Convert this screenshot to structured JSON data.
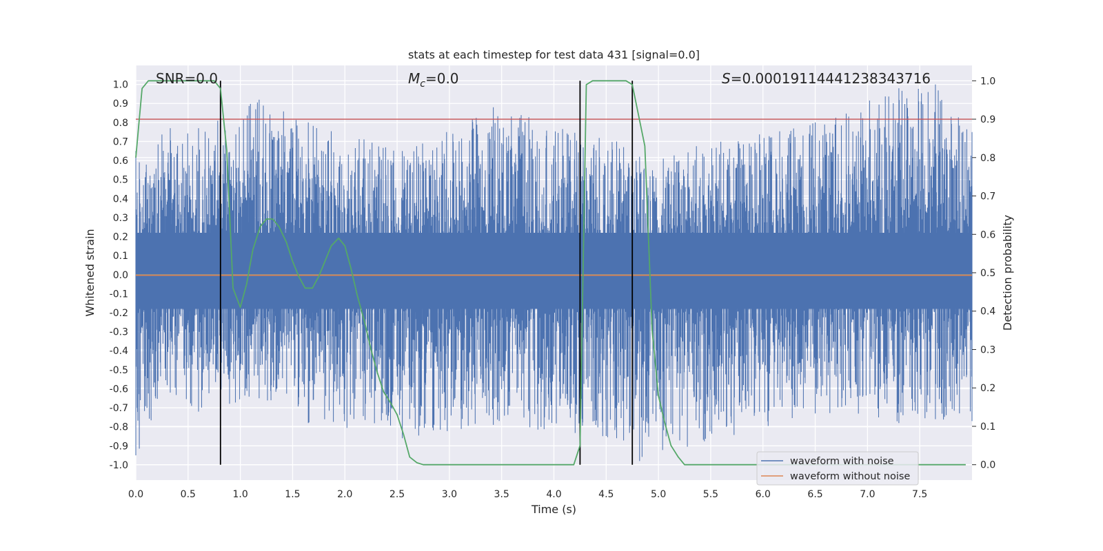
{
  "chart_data": {
    "type": "line",
    "title": "stats at each timestep for test data 431 [signal=0.0]",
    "xlabel": "Time (s)",
    "ylabel": "Whitened strain",
    "y2label": "Detection probability",
    "xlim": [
      0.0,
      8.0
    ],
    "ylim": [
      -1.08,
      1.1
    ],
    "y2lim": [
      -0.04,
      1.04
    ],
    "xticks": [
      "0.0",
      "0.5",
      "1.0",
      "1.5",
      "2.0",
      "2.5",
      "3.0",
      "3.5",
      "4.0",
      "4.5",
      "5.0",
      "5.5",
      "6.0",
      "6.5",
      "7.0",
      "7.5"
    ],
    "yticks": [
      "-1.0",
      "-0.9",
      "-0.8",
      "-0.7",
      "-0.6",
      "-0.5",
      "-0.4",
      "-0.3",
      "-0.2",
      "-0.1",
      "0.0",
      "0.1",
      "0.2",
      "0.3",
      "0.4",
      "0.5",
      "0.6",
      "0.7",
      "0.8",
      "0.9",
      "1.0"
    ],
    "y2ticks": [
      "0.0",
      "0.1",
      "0.2",
      "0.3",
      "0.4",
      "0.5",
      "0.6",
      "0.7",
      "0.8",
      "0.9",
      "1.0"
    ],
    "annotations": {
      "snr": "SNR=0.0",
      "mc_symbol": "M",
      "mc_subscript": "c",
      "mc_value": "=0.0",
      "s_symbol": "S",
      "s_value": "=0.00019114441238343716"
    },
    "series": [
      {
        "name": "waveform with noise",
        "axis": "left",
        "color": "#4c72b0",
        "noise_envelope": [
          {
            "x": 0.0,
            "max": 0.65,
            "min": -0.95
          },
          {
            "x": 0.33,
            "max": 0.77,
            "min": -0.62
          },
          {
            "x": 0.6,
            "max": 0.77,
            "min": -0.72
          },
          {
            "x": 1.18,
            "max": 0.92,
            "min": -0.65
          },
          {
            "x": 1.65,
            "max": 0.8,
            "min": -0.78
          },
          {
            "x": 2.55,
            "max": 0.65,
            "min": -0.86
          },
          {
            "x": 3.42,
            "max": 0.88,
            "min": -0.79
          },
          {
            "x": 4.6,
            "max": 0.7,
            "min": -0.86
          },
          {
            "x": 4.82,
            "max": 0.62,
            "min": -0.98
          },
          {
            "x": 6.5,
            "max": 0.8,
            "min": -0.73
          },
          {
            "x": 7.3,
            "max": 0.98,
            "min": -0.78
          },
          {
            "x": 7.65,
            "max": 1.0,
            "min": -0.76
          },
          {
            "x": 8.0,
            "max": 0.75,
            "min": -0.77
          }
        ]
      },
      {
        "name": "waveform without noise",
        "axis": "left",
        "color": "#dd8452",
        "x": [
          0.0,
          8.0
        ],
        "y": [
          0.0,
          0.0
        ]
      },
      {
        "name": "detection probability",
        "axis": "right",
        "color": "#55a868",
        "x": [
          0.0,
          0.06,
          0.12,
          0.25,
          0.5,
          0.75,
          0.81,
          0.87,
          0.93,
          1.0,
          1.06,
          1.12,
          1.19,
          1.25,
          1.31,
          1.37,
          1.44,
          1.5,
          1.56,
          1.62,
          1.69,
          1.75,
          1.81,
          1.87,
          1.94,
          2.0,
          2.06,
          2.12,
          2.19,
          2.25,
          2.31,
          2.37,
          2.44,
          2.5,
          2.56,
          2.62,
          2.69,
          2.75,
          3.0,
          3.5,
          4.0,
          4.19,
          4.25,
          4.31,
          4.37,
          4.5,
          4.69,
          4.75,
          4.81,
          4.87,
          4.94,
          5.0,
          5.06,
          5.12,
          5.19,
          5.25,
          6.0,
          7.0,
          7.94
        ],
        "y": [
          0.8,
          0.98,
          1.0,
          1.0,
          1.0,
          1.0,
          0.98,
          0.82,
          0.46,
          0.41,
          0.47,
          0.56,
          0.62,
          0.64,
          0.64,
          0.62,
          0.58,
          0.53,
          0.49,
          0.46,
          0.46,
          0.49,
          0.53,
          0.57,
          0.59,
          0.57,
          0.51,
          0.44,
          0.37,
          0.3,
          0.24,
          0.19,
          0.16,
          0.13,
          0.08,
          0.02,
          0.005,
          0.0,
          0.0,
          0.0,
          0.0,
          0.0,
          0.05,
          0.99,
          1.0,
          1.0,
          1.0,
          0.99,
          0.91,
          0.83,
          0.35,
          0.18,
          0.11,
          0.05,
          0.02,
          0.0,
          0.0,
          0.0,
          0.0
        ]
      }
    ],
    "hlines": [
      {
        "axis": "right",
        "y": 0.9,
        "color": "#c44e52"
      },
      {
        "axis": "left",
        "y": 0.0,
        "color": "#8c8c8c"
      }
    ],
    "vlines": [
      {
        "x": 0.81,
        "color": "#000000"
      },
      {
        "x": 4.25,
        "color": "#000000"
      },
      {
        "x": 4.75,
        "color": "#000000"
      }
    ],
    "grid": true,
    "legend_position": "lower-right"
  }
}
